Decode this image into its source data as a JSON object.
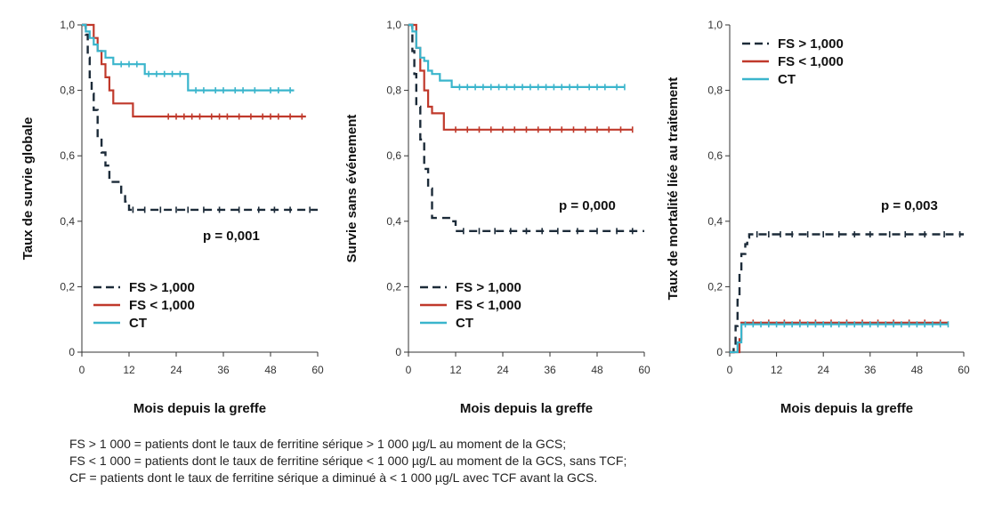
{
  "chart_data": [
    {
      "type": "line",
      "ylabel": "Taux de survie globale",
      "xlabel": "Mois depuis la greffe",
      "xlim": [
        0,
        60
      ],
      "ylim": [
        0,
        1
      ],
      "xticks": [
        "0",
        "12",
        "24",
        "36",
        "48",
        "60"
      ],
      "yticks": [
        "0",
        "0,2",
        "0,4",
        "0,6",
        "0,8",
        "1,0"
      ],
      "annotation": "p = 0,001",
      "legend_position": "bottom-left",
      "series": [
        {
          "name": "FS > 1,000",
          "color": "#1c2b39",
          "dash": true,
          "x": [
            0,
            1,
            1.5,
            2,
            2.5,
            3,
            4,
            5,
            6,
            7,
            10,
            11,
            12,
            60
          ],
          "y": [
            1.0,
            0.97,
            0.9,
            0.84,
            0.79,
            0.74,
            0.66,
            0.61,
            0.57,
            0.52,
            0.48,
            0.46,
            0.435,
            0.435
          ],
          "censored": [
            13,
            16,
            20,
            24,
            27,
            31,
            35,
            40,
            45,
            49,
            53,
            58
          ]
        },
        {
          "name": "FS < 1,000",
          "color": "#c0392b",
          "dash": false,
          "x": [
            0,
            2,
            3,
            4,
            5,
            6,
            7,
            8,
            13,
            57
          ],
          "y": [
            1.0,
            1.0,
            0.96,
            0.92,
            0.88,
            0.84,
            0.8,
            0.76,
            0.72,
            0.72
          ],
          "censored": [
            22,
            24,
            26,
            28,
            30,
            33,
            35,
            37,
            40,
            43,
            46,
            48,
            50,
            53,
            56
          ]
        },
        {
          "name": "CT",
          "color": "#3ab5cc",
          "dash": false,
          "x": [
            0,
            1,
            2,
            3,
            4,
            5,
            6,
            8,
            12,
            16,
            27,
            54
          ],
          "y": [
            1.0,
            0.98,
            0.96,
            0.94,
            0.92,
            0.92,
            0.9,
            0.88,
            0.88,
            0.85,
            0.8,
            0.8
          ],
          "censored": [
            10,
            12,
            14,
            17,
            19,
            21,
            23,
            25,
            29,
            31,
            34,
            36,
            39,
            41,
            44,
            48,
            50,
            53
          ]
        }
      ]
    },
    {
      "type": "line",
      "ylabel": "Survie sans événement",
      "xlabel": "Mois depuis la greffe",
      "xlim": [
        0,
        60
      ],
      "ylim": [
        0,
        1
      ],
      "xticks": [
        "0",
        "12",
        "24",
        "36",
        "48",
        "60"
      ],
      "yticks": [
        "0",
        "0,2",
        "0,4",
        "0,6",
        "0,8",
        "1,0"
      ],
      "annotation": "p = 0,000",
      "legend_position": "bottom-left",
      "series": [
        {
          "name": "FS > 1,000",
          "color": "#1c2b39",
          "dash": true,
          "x": [
            0,
            1,
            1.5,
            2,
            3,
            4,
            5,
            6,
            11,
            12,
            60
          ],
          "y": [
            1.0,
            0.92,
            0.85,
            0.75,
            0.65,
            0.56,
            0.5,
            0.41,
            0.4,
            0.37,
            0.37
          ],
          "censored": [
            14,
            18,
            22,
            26,
            30,
            34,
            38,
            43,
            48,
            53,
            57
          ]
        },
        {
          "name": "FS < 1,000",
          "color": "#c0392b",
          "dash": false,
          "x": [
            0,
            1,
            2,
            3,
            4,
            5,
            6,
            9,
            57
          ],
          "y": [
            1.0,
            1.0,
            0.93,
            0.86,
            0.8,
            0.75,
            0.73,
            0.68,
            0.68
          ],
          "censored": [
            12,
            15,
            18,
            21,
            24,
            27,
            30,
            33,
            36,
            39,
            42,
            45,
            48,
            51,
            54,
            57
          ]
        },
        {
          "name": "CT",
          "color": "#3ab5cc",
          "dash": false,
          "x": [
            0,
            1,
            2,
            3,
            4,
            5,
            6,
            8,
            11,
            55
          ],
          "y": [
            1.0,
            0.98,
            0.93,
            0.9,
            0.89,
            0.86,
            0.85,
            0.83,
            0.81,
            0.81
          ],
          "censored": [
            13,
            15,
            17,
            19,
            21,
            23,
            25,
            27,
            29,
            31,
            33,
            35,
            37,
            39,
            41,
            43,
            46,
            48,
            50,
            53,
            55
          ]
        }
      ]
    },
    {
      "type": "line",
      "ylabel": "Taux de mortalité liée au traitement",
      "xlabel": "Mois depuis la greffe",
      "xlim": [
        0,
        60
      ],
      "ylim": [
        0,
        1
      ],
      "xticks": [
        "0",
        "12",
        "24",
        "36",
        "48",
        "60"
      ],
      "yticks": [
        "0",
        "0,2",
        "0,4",
        "0,6",
        "0,8",
        "1,0"
      ],
      "annotation": "p = 0,003",
      "legend_position": "top-left",
      "series": [
        {
          "name": "FS > 1,000",
          "color": "#1c2b39",
          "dash": true,
          "x": [
            0,
            1,
            1.5,
            2,
            2.5,
            3,
            4,
            4.5,
            5,
            60
          ],
          "y": [
            0,
            0.02,
            0.08,
            0.16,
            0.24,
            0.3,
            0.33,
            0.35,
            0.36,
            0.36
          ],
          "censored": [
            7,
            10,
            13,
            16,
            20,
            24,
            28,
            32,
            36,
            41,
            45,
            50,
            55,
            59
          ]
        },
        {
          "name": "FS < 1,000",
          "color": "#c0392b",
          "dash": false,
          "x": [
            0,
            2,
            2.5,
            3,
            56
          ],
          "y": [
            0,
            0,
            0.04,
            0.09,
            0.09
          ],
          "censored": [
            6,
            10,
            14,
            18,
            22,
            26,
            30,
            34,
            38,
            42,
            46,
            50,
            54
          ]
        },
        {
          "name": "CT",
          "color": "#3ab5cc",
          "dash": false,
          "x": [
            0,
            1.5,
            2,
            3,
            56
          ],
          "y": [
            0,
            0,
            0.03,
            0.085,
            0.085
          ],
          "censored": [
            4,
            6,
            8,
            10,
            12,
            14,
            16,
            18,
            20,
            22,
            24,
            26,
            28,
            30,
            32,
            34,
            36,
            38,
            40,
            42,
            44,
            46,
            48,
            50,
            52,
            54,
            56
          ]
        }
      ]
    }
  ],
  "footnote": {
    "line1": "FS > 1 000 = patients dont le taux de ferritine sérique > 1 000 µg/L au moment de la GCS;",
    "line2": "FS < 1 000 = patients dont le taux de ferritine sérique < 1 000 µg/L au moment de la GCS, sans TCF;",
    "line3": "CF = patients dont le taux de ferritine sérique a diminué à < 1 000 µg/L avec TCF avant la GCS."
  }
}
